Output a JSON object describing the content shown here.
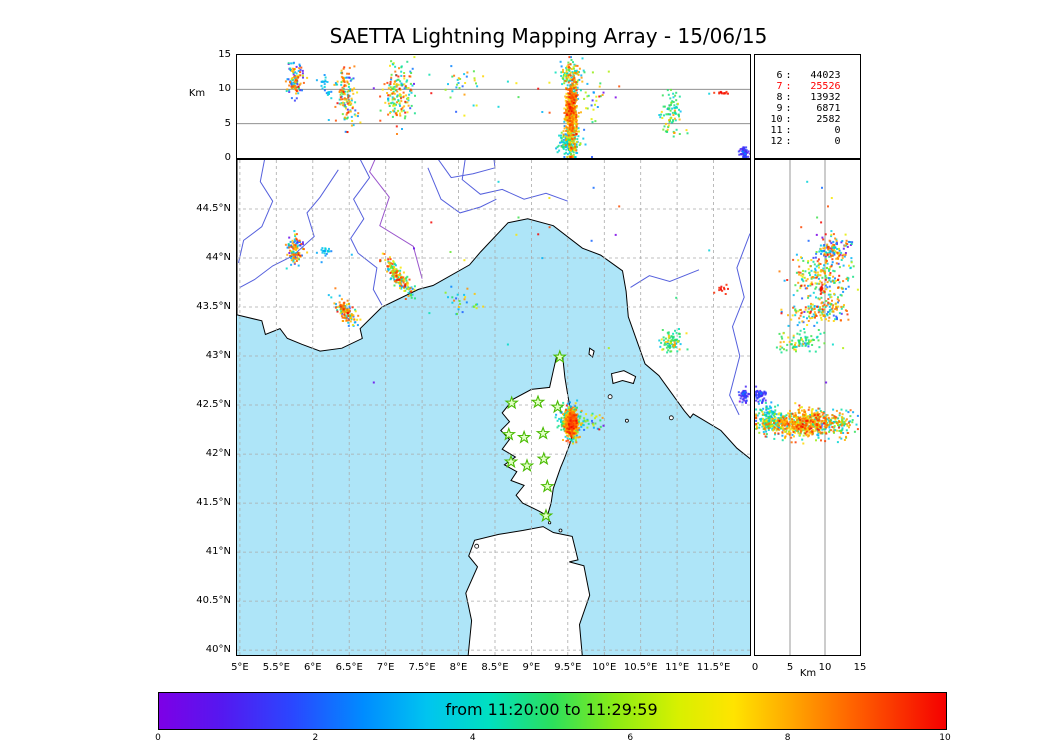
{
  "title": "SAETTA Lightning Mapping Array - 15/06/15",
  "colors": {
    "sea": "#aee5f8",
    "land": "#ffffff",
    "coast": "#000000",
    "river": "#5560dd",
    "border": "#9a55cc",
    "grid": "#aaaaaa",
    "panel_grid": "#808080",
    "station_fill": "#e2ffc8",
    "station_stroke": "#49bb00"
  },
  "axes": {
    "lon": {
      "min": 4.96,
      "max": 12.0,
      "ticks": [
        {
          "v": 5,
          "label": "5°E"
        },
        {
          "v": 5.5,
          "label": "5.5°E"
        },
        {
          "v": 6,
          "label": "6°E"
        },
        {
          "v": 6.5,
          "label": "6.5°E"
        },
        {
          "v": 7,
          "label": "7°E"
        },
        {
          "v": 7.5,
          "label": "7.5°E"
        },
        {
          "v": 8,
          "label": "8°E"
        },
        {
          "v": 8.5,
          "label": "8.5°E"
        },
        {
          "v": 9,
          "label": "9°E"
        },
        {
          "v": 9.5,
          "label": "9.5°E"
        },
        {
          "v": 10,
          "label": "10°E"
        },
        {
          "v": 10.5,
          "label": "10.5°E"
        },
        {
          "v": 11,
          "label": "11°E"
        },
        {
          "v": 11.5,
          "label": "11.5°E"
        }
      ]
    },
    "lat": {
      "min": 39.95,
      "max": 45.0,
      "ticks": [
        {
          "v": 40,
          "label": "40°N"
        },
        {
          "v": 40.5,
          "label": "40.5°N"
        },
        {
          "v": 41,
          "label": "41°N"
        },
        {
          "v": 41.5,
          "label": "41.5°N"
        },
        {
          "v": 42,
          "label": "42°N"
        },
        {
          "v": 42.5,
          "label": "42.5°N"
        },
        {
          "v": 43,
          "label": "43°N"
        },
        {
          "v": 43.5,
          "label": "43.5°N"
        },
        {
          "v": 44,
          "label": "44°N"
        },
        {
          "v": 44.5,
          "label": "44.5°N"
        }
      ]
    },
    "alt": {
      "min": 0,
      "max": 15,
      "axis_label": "Km",
      "ticks": [
        {
          "v": 0,
          "label": "0"
        },
        {
          "v": 5,
          "label": "5"
        },
        {
          "v": 10,
          "label": "10"
        },
        {
          "v": 15,
          "label": "15"
        }
      ],
      "grid": [
        5,
        10
      ]
    }
  },
  "stats_panel": {
    "rows": [
      {
        "level": "6",
        "count": "44023",
        "color": "#000000"
      },
      {
        "level": "7",
        "count": "25526",
        "color": "#ff0000"
      },
      {
        "level": "8",
        "count": "13932",
        "color": "#000000"
      },
      {
        "level": "9",
        "count": "6871",
        "color": "#000000"
      },
      {
        "level": "10",
        "count": "2582",
        "color": "#000000"
      },
      {
        "level": "11",
        "count": "0",
        "color": "#000000"
      },
      {
        "level": "12",
        "count": "0",
        "color": "#000000"
      }
    ]
  },
  "colorbar": {
    "label": "from 11:20:00 to 11:29:59",
    "min": 0,
    "max": 10,
    "ticks": [
      "0",
      "2",
      "4",
      "6",
      "8",
      "10"
    ],
    "stops": [
      [
        0,
        "#7d00e6"
      ],
      [
        0.08,
        "#5518f0"
      ],
      [
        0.17,
        "#2a47ff"
      ],
      [
        0.26,
        "#008cff"
      ],
      [
        0.34,
        "#00c4f0"
      ],
      [
        0.42,
        "#00e0c0"
      ],
      [
        0.5,
        "#2ce05c"
      ],
      [
        0.58,
        "#8cec14"
      ],
      [
        0.66,
        "#d8f000"
      ],
      [
        0.73,
        "#ffe400"
      ],
      [
        0.8,
        "#ffaa00"
      ],
      [
        0.88,
        "#ff6400"
      ],
      [
        1,
        "#f50000"
      ]
    ]
  },
  "chart_data": {
    "type": "scatter",
    "title": "SAETTA Lightning Mapping Array - 15/06/15",
    "time_window": {
      "start": "11:20:00",
      "end": "11:29:59"
    },
    "color_scale": {
      "min": 0,
      "max": 10,
      "meaning": "time within 10-minute window"
    },
    "panels": [
      {
        "id": "lon-alt",
        "x": "longitude_deg_E",
        "x_range": [
          4.96,
          12.0
        ],
        "y": "altitude_km",
        "y_range": [
          0,
          15
        ]
      },
      {
        "id": "map",
        "x": "longitude_deg_E",
        "x_range": [
          4.96,
          12.0
        ],
        "y": "latitude_deg_N",
        "y_range": [
          39.95,
          45.0
        ]
      },
      {
        "id": "alt-lat",
        "x": "altitude_km",
        "x_range": [
          0,
          15
        ],
        "y": "latitude_deg_N",
        "y_range": [
          39.95,
          45.0
        ]
      }
    ],
    "source_counts_by_level": [
      [
        "6",
        44023
      ],
      [
        "7",
        25526
      ],
      [
        "8",
        13932
      ],
      [
        "9",
        6871
      ],
      [
        "10",
        2582
      ],
      [
        "11",
        0
      ],
      [
        "12",
        0
      ]
    ],
    "stations_lon_lat": [
      [
        9.39,
        42.99
      ],
      [
        8.73,
        42.52
      ],
      [
        9.09,
        42.53
      ],
      [
        9.36,
        42.48
      ],
      [
        8.69,
        42.2
      ],
      [
        8.9,
        42.17
      ],
      [
        9.16,
        42.21
      ],
      [
        8.72,
        41.92
      ],
      [
        8.94,
        41.88
      ],
      [
        9.17,
        41.95
      ],
      [
        9.22,
        41.67
      ],
      [
        9.2,
        41.37
      ]
    ],
    "clusters": [
      {
        "name": "corsica_core",
        "lon": 9.55,
        "lon_sd": 0.04,
        "lat": 42.31,
        "lat_sd": 0.065,
        "alt": 6.5,
        "alt_sd": 2.8,
        "n": 620,
        "t_mix": [
          [
            8.3,
            0.7,
            0.62
          ],
          [
            7.0,
            0.5,
            0.16
          ],
          [
            4.2,
            1.0,
            0.22
          ]
        ]
      },
      {
        "name": "corsica_low_fringe",
        "lon": 9.52,
        "lon_sd": 0.07,
        "lat": 42.35,
        "lat_sd": 0.07,
        "alt": 2.2,
        "alt_sd": 1.0,
        "n": 160,
        "t_mix": [
          [
            4.3,
            0.8,
            0.55
          ],
          [
            3.2,
            0.5,
            0.45
          ]
        ]
      },
      {
        "name": "corsica_top",
        "lon": 9.55,
        "lon_sd": 0.08,
        "lat": 42.3,
        "lat_sd": 0.07,
        "alt": 12.0,
        "alt_sd": 1.0,
        "n": 90,
        "t_mix": [
          [
            3.6,
            0.8,
            0.4
          ],
          [
            5.2,
            0.6,
            0.3
          ],
          [
            8.2,
            0.5,
            0.3
          ]
        ]
      },
      {
        "name": "corsica_east_sparse",
        "lon": 9.82,
        "lon_sd": 0.1,
        "lat": 42.33,
        "lat_sd": 0.07,
        "alt": 7.0,
        "alt_sd": 2.5,
        "n": 30,
        "t_mix": [
          [
            5.0,
            2.0,
            1.0
          ]
        ]
      },
      {
        "name": "liguria_streak",
        "lon": 7.18,
        "lon_sd": 0.11,
        "slope": -0.75,
        "lat": 43.8,
        "lat_sd": 0.05,
        "alt": 9.5,
        "alt_sd": 2.0,
        "n": 170,
        "t_mix": [
          [
            5.0,
            0.8,
            0.3
          ],
          [
            3.5,
            0.8,
            0.25
          ],
          [
            7.9,
            0.7,
            0.3
          ],
          [
            9.3,
            0.4,
            0.15
          ]
        ]
      },
      {
        "name": "provence",
        "lon": 5.76,
        "lon_sd": 0.07,
        "lat": 44.08,
        "lat_sd": 0.08,
        "alt": 11.3,
        "alt_sd": 1.3,
        "n": 110,
        "t_mix": [
          [
            8.2,
            0.7,
            0.45
          ],
          [
            4.6,
            0.8,
            0.2
          ],
          [
            3.0,
            0.7,
            0.2
          ],
          [
            0.8,
            0.4,
            0.15
          ]
        ]
      },
      {
        "name": "provence_cyan",
        "lon": 6.17,
        "lon_sd": 0.04,
        "lat": 44.05,
        "lat_sd": 0.04,
        "alt": 10.5,
        "alt_sd": 0.9,
        "n": 22,
        "t_mix": [
          [
            3.2,
            0.5,
            1.0
          ]
        ]
      },
      {
        "name": "var_storm",
        "lon": 6.46,
        "lon_sd": 0.07,
        "slope": -0.5,
        "lat": 43.45,
        "lat_sd": 0.05,
        "alt": 9.0,
        "alt_sd": 2.3,
        "n": 140,
        "t_mix": [
          [
            8.3,
            0.7,
            0.5
          ],
          [
            3.5,
            0.7,
            0.2
          ],
          [
            5.2,
            0.6,
            0.15
          ],
          [
            1.6,
            0.7,
            0.15
          ]
        ]
      },
      {
        "name": "liguria_sparse",
        "lon": 8.08,
        "lon_sd": 0.1,
        "lat": 43.55,
        "lat_sd": 0.07,
        "alt": 10.8,
        "alt_sd": 1.5,
        "n": 28,
        "t_mix": [
          [
            4.0,
            1.2,
            0.6
          ],
          [
            7.6,
            0.8,
            0.4
          ]
        ]
      },
      {
        "name": "tuscany_green",
        "lon": 10.93,
        "lon_sd": 0.08,
        "lat": 43.15,
        "lat_sd": 0.06,
        "alt": 6.5,
        "alt_sd": 1.7,
        "n": 85,
        "t_mix": [
          [
            4.8,
            0.35,
            0.66
          ],
          [
            3.0,
            0.6,
            0.17
          ],
          [
            7.6,
            0.5,
            0.17
          ]
        ]
      },
      {
        "name": "navy_blob",
        "lon": 11.92,
        "lon_sd": 0.03,
        "lat": 42.6,
        "lat_sd": 0.03,
        "alt": 0.8,
        "alt_sd": 0.5,
        "n": 55,
        "t_mix": [
          [
            1.0,
            0.4,
            0.75
          ],
          [
            1.9,
            0.3,
            0.25
          ]
        ]
      },
      {
        "name": "red_streak",
        "lon": 11.6,
        "lon_sd": 0.06,
        "lat": 43.7,
        "lat_sd": 0.03,
        "alt": 9.5,
        "alt_sd": 0.12,
        "n": 12,
        "t_mix": [
          [
            9.7,
            0.15,
            1.0
          ]
        ]
      },
      {
        "name": "scattered",
        "lon": 8.8,
        "lon_sd": 1.4,
        "lat": 43.95,
        "lat_sd": 0.45,
        "alt": 9.5,
        "alt_sd": 2.2,
        "n": 22,
        "t_mix": [
          [
            5.0,
            2.8,
            1.0
          ]
        ]
      }
    ]
  },
  "geo": {
    "land": [
      [
        [
          4.96,
          45.05
        ],
        [
          12.04,
          45.05
        ],
        [
          12.04,
          41.93
        ],
        [
          11.82,
          42.06
        ],
        [
          11.6,
          42.24
        ],
        [
          11.22,
          42.41
        ],
        [
          11.18,
          42.37
        ],
        [
          11.1,
          42.44
        ],
        [
          10.75,
          42.8
        ],
        [
          10.56,
          42.92
        ],
        [
          10.33,
          43.4
        ],
        [
          10.3,
          43.66
        ],
        [
          10.25,
          43.87
        ],
        [
          9.95,
          44.03
        ],
        [
          9.7,
          44.1
        ],
        [
          9.3,
          44.33
        ],
        [
          8.95,
          44.4
        ],
        [
          8.68,
          44.36
        ],
        [
          8.3,
          44.06
        ],
        [
          8.15,
          43.93
        ],
        [
          7.65,
          43.72
        ],
        [
          7.45,
          43.68
        ],
        [
          6.95,
          43.5
        ],
        [
          6.65,
          43.28
        ],
        [
          6.68,
          43.18
        ],
        [
          6.4,
          43.08
        ],
        [
          6.1,
          43.05
        ],
        [
          5.85,
          43.12
        ],
        [
          5.65,
          43.18
        ],
        [
          5.55,
          43.28
        ],
        [
          5.35,
          43.22
        ],
        [
          5.3,
          43.36
        ],
        [
          4.96,
          43.42
        ]
      ],
      [
        [
          9.35,
          43.01
        ],
        [
          9.43,
          42.99
        ],
        [
          9.46,
          42.78
        ],
        [
          9.5,
          42.6
        ],
        [
          9.56,
          42.35
        ],
        [
          9.55,
          42.15
        ],
        [
          9.45,
          41.95
        ],
        [
          9.4,
          41.86
        ],
        [
          9.3,
          41.65
        ],
        [
          9.27,
          41.5
        ],
        [
          9.22,
          41.37
        ],
        [
          9.1,
          41.42
        ],
        [
          8.88,
          41.5
        ],
        [
          8.79,
          41.58
        ],
        [
          8.9,
          41.68
        ],
        [
          8.72,
          41.73
        ],
        [
          8.8,
          41.82
        ],
        [
          8.63,
          41.89
        ],
        [
          8.78,
          41.97
        ],
        [
          8.6,
          42.05
        ],
        [
          8.7,
          42.15
        ],
        [
          8.58,
          42.24
        ],
        [
          8.7,
          42.33
        ],
        [
          8.6,
          42.42
        ],
        [
          8.75,
          42.56
        ],
        [
          9.0,
          42.66
        ],
        [
          9.25,
          42.68
        ],
        [
          9.3,
          42.85
        ]
      ],
      [
        [
          8.13,
          39.93
        ],
        [
          8.18,
          40.3
        ],
        [
          8.1,
          40.58
        ],
        [
          8.26,
          40.85
        ],
        [
          8.14,
          40.96
        ],
        [
          8.22,
          41.12
        ],
        [
          8.55,
          41.18
        ],
        [
          8.88,
          41.22
        ],
        [
          9.16,
          41.26
        ],
        [
          9.3,
          41.2
        ],
        [
          9.56,
          41.16
        ],
        [
          9.64,
          40.92
        ],
        [
          9.52,
          40.9
        ],
        [
          9.72,
          40.86
        ],
        [
          9.8,
          40.56
        ],
        [
          9.66,
          40.26
        ],
        [
          9.7,
          39.93
        ]
      ],
      [
        [
          10.1,
          42.82
        ],
        [
          10.27,
          42.85
        ],
        [
          10.43,
          42.79
        ],
        [
          10.4,
          42.72
        ],
        [
          10.25,
          42.75
        ],
        [
          10.12,
          42.72
        ]
      ],
      [
        [
          9.8,
          43.08
        ],
        [
          9.86,
          43.05
        ],
        [
          9.84,
          42.99
        ],
        [
          9.79,
          43.02
        ]
      ]
    ],
    "islets": [
      [
        10.08,
        42.585,
        2
      ],
      [
        10.31,
        42.34,
        1.5
      ],
      [
        10.92,
        42.37,
        2
      ],
      [
        9.4,
        41.22,
        1.5
      ],
      [
        9.25,
        41.3,
        1.2
      ],
      [
        8.25,
        41.06,
        2
      ]
    ],
    "rivers": [
      [
        [
          5.35,
          45.05
        ],
        [
          5.28,
          44.78
        ],
        [
          5.45,
          44.58
        ],
        [
          5.3,
          44.32
        ],
        [
          5.05,
          44.18
        ],
        [
          4.98,
          43.95
        ]
      ],
      [
        [
          6.35,
          44.9
        ],
        [
          6.1,
          44.62
        ],
        [
          5.92,
          44.46
        ],
        [
          6.02,
          44.22
        ],
        [
          5.72,
          44.02
        ],
        [
          5.45,
          43.92
        ],
        [
          5.2,
          43.78
        ],
        [
          5.0,
          43.7
        ]
      ],
      [
        [
          6.62,
          45.05
        ],
        [
          6.78,
          44.82
        ],
        [
          6.56,
          44.6
        ],
        [
          6.7,
          44.4
        ],
        [
          6.52,
          44.2
        ],
        [
          6.62,
          44.05
        ],
        [
          6.88,
          43.9
        ],
        [
          6.83,
          43.68
        ],
        [
          6.95,
          43.52
        ]
      ],
      [
        [
          7.68,
          45.05
        ],
        [
          7.9,
          44.82
        ],
        [
          8.2,
          44.86
        ],
        [
          8.5,
          44.92
        ],
        [
          8.48,
          45.05
        ]
      ],
      [
        [
          7.58,
          44.92
        ],
        [
          7.76,
          44.6
        ],
        [
          8.02,
          44.46
        ],
        [
          8.3,
          44.52
        ],
        [
          8.52,
          44.6
        ]
      ],
      [
        [
          8.1,
          45.05
        ],
        [
          8.05,
          44.8
        ],
        [
          8.3,
          44.65
        ],
        [
          8.6,
          44.7
        ],
        [
          8.9,
          44.6
        ],
        [
          9.2,
          44.66
        ],
        [
          9.5,
          44.58
        ]
      ],
      [
        [
          11.3,
          43.88
        ],
        [
          10.9,
          43.76
        ],
        [
          10.62,
          43.82
        ],
        [
          10.36,
          43.7
        ]
      ],
      [
        [
          12.0,
          44.25
        ],
        [
          11.82,
          43.9
        ],
        [
          11.92,
          43.6
        ],
        [
          11.76,
          43.3
        ],
        [
          11.86,
          43.0
        ],
        [
          11.72,
          42.6
        ],
        [
          11.85,
          42.4
        ]
      ]
    ],
    "borders": [
      [
        [
          7.5,
          43.79
        ],
        [
          7.38,
          44.12
        ],
        [
          6.92,
          44.33
        ],
        [
          7.05,
          44.62
        ],
        [
          6.78,
          44.88
        ],
        [
          6.88,
          45.05
        ]
      ]
    ]
  }
}
